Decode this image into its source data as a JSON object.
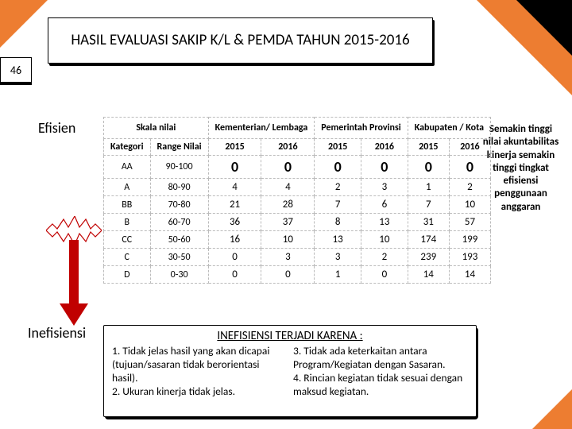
{
  "page_number": "46",
  "title": "HASIL EVALUASI SAKIP K/L & PEMDA TAHUN 2015-2016",
  "labels": {
    "efisien": "Efisien",
    "inefisiensi": "Inefisiensi"
  },
  "side_text": "Semakin tinggi nilai akuntabilitas kinerja semakin tinggi tingkat efisiensi penggunaan anggaran",
  "table": {
    "head_groups": [
      "Skala nilai",
      "Kementerian/ Lembaga",
      "Pemerintah Provinsi",
      "Kabupaten / Kota"
    ],
    "head_sub": [
      "Kategori",
      "Range Nilai",
      "2015",
      "2016",
      "2015",
      "2016",
      "2015",
      "2016"
    ],
    "rows": [
      {
        "k": "AA",
        "r": "90-100",
        "v": [
          "0",
          "0",
          "0",
          "0",
          "0",
          "0"
        ],
        "zero": true
      },
      {
        "k": "A",
        "r": "80-90",
        "v": [
          "4",
          "4",
          "2",
          "3",
          "1",
          "2"
        ]
      },
      {
        "k": "BB",
        "r": "70-80",
        "v": [
          "21",
          "28",
          "7",
          "6",
          "7",
          "10"
        ]
      },
      {
        "k": "B",
        "r": "60-70",
        "v": [
          "36",
          "37",
          "8",
          "13",
          "31",
          "57"
        ]
      },
      {
        "k": "CC",
        "r": "50-60",
        "v": [
          "16",
          "10",
          "13",
          "10",
          "174",
          "199"
        ]
      },
      {
        "k": "C",
        "r": "30-50",
        "v": [
          "0",
          "3",
          "3",
          "2",
          "239",
          "193"
        ]
      },
      {
        "k": "D",
        "r": "0-30",
        "v": [
          "0",
          "0",
          "1",
          "0",
          "14",
          "14"
        ]
      }
    ]
  },
  "sub": {
    "title": "INEFISIENSI TERJADI KARENA :",
    "col1_1": "1.  Tidak jelas hasil yang akan dicapai (tujuan/sasaran tidak berorientasi hasil).",
    "col1_2": "2.  Ukuran kinerja tidak jelas.",
    "col2_1": "3.  Tidak ada keterkaitan antara Program/Kegiatan dengan Sasaran.",
    "col2_2": "4.  Rincian kegiatan tidak sesuai dengan maksud kegiatan."
  },
  "colors": {
    "accent": "#ed7d31",
    "arrow_red": "#c00000",
    "arrow_burst_border": "#c00000",
    "arrow_burst_fill": "#ffffff"
  }
}
